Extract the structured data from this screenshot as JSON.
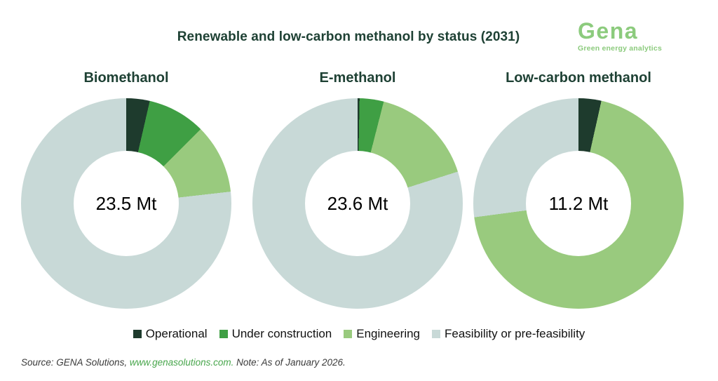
{
  "header": {
    "title": "Renewable and low-carbon methanol by status (2031)",
    "logo": {
      "name": "Gena",
      "tagline": "Green energy analytics",
      "color": "#8ccb7d"
    }
  },
  "chart_data": {
    "type": "pie",
    "subtype": "donut",
    "title": "Renewable and low-carbon methanol by status (2031)",
    "legend_position": "bottom",
    "statuses": [
      "Operational",
      "Under construction",
      "Engineering",
      "Feasibility or pre-feasibility"
    ],
    "colors": [
      "#1e3b2d",
      "#3f9f44",
      "#99ca7e",
      "#c8d9d7"
    ],
    "charts": [
      {
        "title": "Biomethanol",
        "center_label": "23.5 Mt",
        "total_mt": 23.5,
        "unit": "Mt",
        "values_pct": [
          3.6,
          8.9,
          10.7,
          76.8
        ]
      },
      {
        "title": "E-methanol",
        "center_label": "23.6 Mt",
        "total_mt": 23.6,
        "unit": "Mt",
        "values_pct": [
          0.3,
          3.7,
          16.1,
          79.9
        ]
      },
      {
        "title": "Low-carbon methanol",
        "center_label": "11.2 Mt",
        "total_mt": 11.2,
        "unit": "Mt",
        "values_pct": [
          3.5,
          0,
          69.4,
          27.1
        ]
      }
    ]
  },
  "footer": {
    "source_prefix": "Source: GENA Solutions, ",
    "source_link": "www.genasolutions.com.",
    "source_suffix": " Note: As of January 2026."
  },
  "theme": {
    "title_color": "#1e4134",
    "link_green": "#48a64c",
    "background": "#ffffff"
  }
}
